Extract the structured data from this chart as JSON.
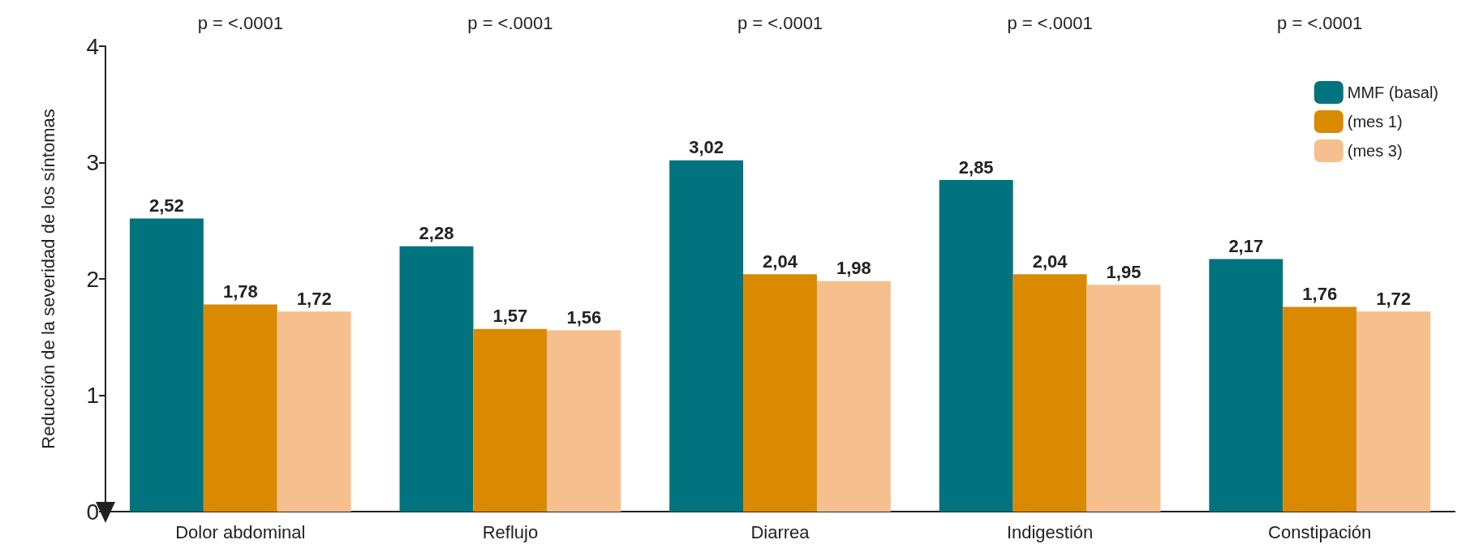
{
  "chart_data": {
    "type": "bar",
    "ylabel": "Reducción de la severidad de los síntomas",
    "categories": [
      "Dolor abdominal",
      "Reflujo",
      "Diarrea",
      "Indigestión",
      "Constipación"
    ],
    "series": [
      {
        "name": "MMF (basal)",
        "color": "#00737f",
        "values": [
          2.52,
          2.28,
          3.02,
          2.85,
          2.17
        ],
        "value_labels": [
          "2,52",
          "2,28",
          "3,02",
          "2,85",
          "2,17"
        ]
      },
      {
        "name": "(mes 1)",
        "color": "#d98a00",
        "values": [
          1.78,
          1.57,
          2.04,
          2.04,
          1.76
        ],
        "value_labels": [
          "1,78",
          "1,57",
          "2,04",
          "2,04",
          "1,76"
        ]
      },
      {
        "name": "(mes 3)",
        "color": "#f5c08e",
        "values": [
          1.72,
          1.56,
          1.98,
          1.95,
          1.72
        ],
        "value_labels": [
          "1,72",
          "1,56",
          "1,98",
          "1,95",
          "1,72"
        ]
      }
    ],
    "ylim": [
      0,
      4
    ],
    "yticks": [
      0,
      1,
      2,
      3,
      4
    ],
    "grid": false,
    "legend": "top right",
    "annotations": [
      "p = <.0001",
      "p = <.0001",
      "p = <.0001",
      "p = <.0001",
      "p = <.0001"
    ]
  }
}
